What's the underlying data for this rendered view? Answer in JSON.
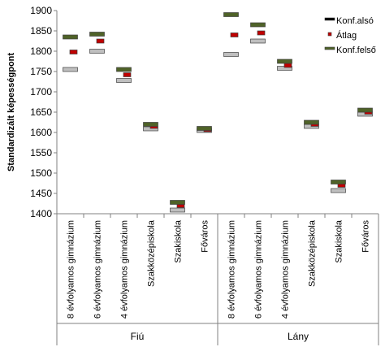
{
  "chart_data": {
    "type": "range-marker",
    "ylabel": "Standardizált képességpont",
    "ylim": [
      1400,
      1900
    ],
    "yticks": [
      1400,
      1450,
      1500,
      1550,
      1600,
      1650,
      1700,
      1750,
      1800,
      1850,
      1900
    ],
    "grid": false,
    "legend_position": "top-right",
    "groups": [
      {
        "name": "Fiú",
        "categories": [
          "8 évfolyamos gimnázium",
          "6 évfolyamos gimnázium",
          "4 évfolyamos gimnázium",
          "Szakközépiskola",
          "Szakiskola",
          "Főváros"
        ]
      },
      {
        "name": "Lány",
        "categories": [
          "8 évfolyamos gimnázium",
          "6 évfolyamos gimnázium",
          "4 évfolyamos gimnázium",
          "Szakközépiskola",
          "Szakiskola",
          "Főváros"
        ]
      }
    ],
    "series": [
      {
        "name": "Konf.alsó",
        "color": "#bfbfbf",
        "values": [
          1755,
          1800,
          1728,
          1609,
          1409,
          1605,
          1792,
          1825,
          1758,
          1615,
          1457,
          1645
        ]
      },
      {
        "name": "Átlag",
        "color": "#c00000",
        "values": [
          1798,
          1825,
          1742,
          1615,
          1420,
          1607,
          1840,
          1845,
          1765,
          1620,
          1470,
          1650
        ]
      },
      {
        "name": "Konf.felső",
        "color": "#4f6228",
        "values": [
          1835,
          1842,
          1755,
          1620,
          1428,
          1610,
          1890,
          1865,
          1775,
          1625,
          1478,
          1655
        ]
      }
    ]
  }
}
